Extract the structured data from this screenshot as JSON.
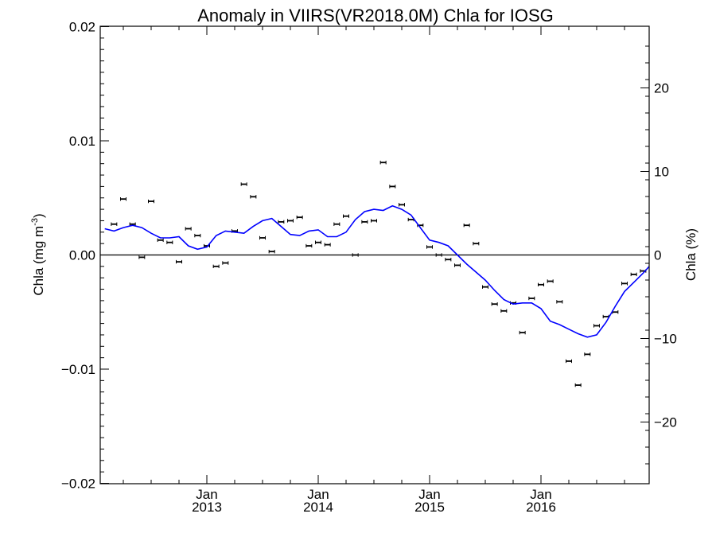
{
  "chart_data": {
    "type": "scatter",
    "title": "Anomaly in VIIRS(VR2018.0M) Chla for IOSG",
    "ylabel": "Chla (mg m",
    "ylabel_superscript": "-3",
    "ylabel_close": ")",
    "y2label": "Chla (%)",
    "x_axis": {
      "type": "date",
      "range": [
        "2012-03",
        "2016-12"
      ],
      "ticks": [
        {
          "month": "Jan",
          "year": "2013",
          "date": "2013-01"
        },
        {
          "month": "Jan",
          "year": "2014",
          "date": "2014-01"
        },
        {
          "month": "Jan",
          "year": "2015",
          "date": "2015-01"
        },
        {
          "month": "Jan",
          "year": "2016",
          "date": "2016-01"
        }
      ]
    },
    "ylim": [
      -0.02,
      0.0202
    ],
    "yticks": [
      "0.02",
      "0.01",
      "0.00",
      "-0.01",
      "-0.02"
    ],
    "y2lim": [
      -27.5,
      27.8
    ],
    "y2ticks": [
      "20",
      "10",
      "0",
      "-10",
      "-20"
    ],
    "zero_line": true,
    "series": [
      {
        "kind": "points_with_error_bars",
        "color": "#000000",
        "points": [
          {
            "x": "2012-03",
            "y": 0.0027
          },
          {
            "x": "2012-04",
            "y": 0.0049
          },
          {
            "x": "2012-05",
            "y": 0.0027
          },
          {
            "x": "2012-06",
            "y": -0.0002
          },
          {
            "x": "2012-07",
            "y": 0.0047
          },
          {
            "x": "2012-08",
            "y": 0.0013
          },
          {
            "x": "2012-09",
            "y": 0.0011
          },
          {
            "x": "2012-10",
            "y": -0.0006
          },
          {
            "x": "2012-11",
            "y": 0.0023
          },
          {
            "x": "2012-12",
            "y": 0.0017
          },
          {
            "x": "2013-01",
            "y": 0.0008
          },
          {
            "x": "2013-02",
            "y": -0.001
          },
          {
            "x": "2013-03",
            "y": -0.0007
          },
          {
            "x": "2013-04",
            "y": 0.0021
          },
          {
            "x": "2013-05",
            "y": 0.0062
          },
          {
            "x": "2013-06",
            "y": 0.0051
          },
          {
            "x": "2013-07",
            "y": 0.0015
          },
          {
            "x": "2013-08",
            "y": 0.0003
          },
          {
            "x": "2013-09",
            "y": 0.0029
          },
          {
            "x": "2013-10",
            "y": 0.003
          },
          {
            "x": "2013-11",
            "y": 0.0033
          },
          {
            "x": "2013-12",
            "y": 0.0008
          },
          {
            "x": "2014-01",
            "y": 0.0011
          },
          {
            "x": "2014-02",
            "y": 0.0009
          },
          {
            "x": "2014-03",
            "y": 0.0027
          },
          {
            "x": "2014-04",
            "y": 0.0034
          },
          {
            "x": "2014-05",
            "y": 0.0
          },
          {
            "x": "2014-06",
            "y": 0.0029
          },
          {
            "x": "2014-07",
            "y": 0.003
          },
          {
            "x": "2014-08",
            "y": 0.0081
          },
          {
            "x": "2014-09",
            "y": 0.006
          },
          {
            "x": "2014-10",
            "y": 0.0044
          },
          {
            "x": "2014-11",
            "y": 0.0031
          },
          {
            "x": "2014-12",
            "y": 0.0026
          },
          {
            "x": "2015-01",
            "y": 0.0007
          },
          {
            "x": "2015-02",
            "y": 0.0
          },
          {
            "x": "2015-03",
            "y": -0.0004
          },
          {
            "x": "2015-04",
            "y": -0.0009
          },
          {
            "x": "2015-05",
            "y": 0.0026
          },
          {
            "x": "2015-06",
            "y": 0.001
          },
          {
            "x": "2015-07",
            "y": -0.0028
          },
          {
            "x": "2015-08",
            "y": -0.0043
          },
          {
            "x": "2015-09",
            "y": -0.0049
          },
          {
            "x": "2015-10",
            "y": -0.0042
          },
          {
            "x": "2015-11",
            "y": -0.0068
          },
          {
            "x": "2015-12",
            "y": -0.0038
          },
          {
            "x": "2016-01",
            "y": -0.0026
          },
          {
            "x": "2016-02",
            "y": -0.0023
          },
          {
            "x": "2016-03",
            "y": -0.0041
          },
          {
            "x": "2016-04",
            "y": -0.0093
          },
          {
            "x": "2016-05",
            "y": -0.0114
          },
          {
            "x": "2016-06",
            "y": -0.0087
          },
          {
            "x": "2016-07",
            "y": -0.0062
          },
          {
            "x": "2016-08",
            "y": -0.0054
          },
          {
            "x": "2016-09",
            "y": -0.005
          },
          {
            "x": "2016-10",
            "y": -0.0025
          },
          {
            "x": "2016-11",
            "y": -0.0017
          },
          {
            "x": "2016-12",
            "y": -0.0014
          }
        ]
      },
      {
        "kind": "line",
        "color": "#0000ff",
        "points": [
          {
            "x": "2012-02",
            "y": 0.0023
          },
          {
            "x": "2012-03",
            "y": 0.0021
          },
          {
            "x": "2012-04",
            "y": 0.0024
          },
          {
            "x": "2012-05",
            "y": 0.0026
          },
          {
            "x": "2012-06",
            "y": 0.0024
          },
          {
            "x": "2012-07",
            "y": 0.0019
          },
          {
            "x": "2012-08",
            "y": 0.0015
          },
          {
            "x": "2012-09",
            "y": 0.0015
          },
          {
            "x": "2012-10",
            "y": 0.0016
          },
          {
            "x": "2012-11",
            "y": 0.0008
          },
          {
            "x": "2012-12",
            "y": 0.0005
          },
          {
            "x": "2013-01",
            "y": 0.0007
          },
          {
            "x": "2013-02",
            "y": 0.0017
          },
          {
            "x": "2013-03",
            "y": 0.0021
          },
          {
            "x": "2013-04",
            "y": 0.002
          },
          {
            "x": "2013-05",
            "y": 0.0019
          },
          {
            "x": "2013-06",
            "y": 0.0025
          },
          {
            "x": "2013-07",
            "y": 0.003
          },
          {
            "x": "2013-08",
            "y": 0.0032
          },
          {
            "x": "2013-09",
            "y": 0.0025
          },
          {
            "x": "2013-10",
            "y": 0.0018
          },
          {
            "x": "2013-11",
            "y": 0.0017
          },
          {
            "x": "2013-12",
            "y": 0.0021
          },
          {
            "x": "2014-01",
            "y": 0.0022
          },
          {
            "x": "2014-02",
            "y": 0.0016
          },
          {
            "x": "2014-03",
            "y": 0.0016
          },
          {
            "x": "2014-04",
            "y": 0.002
          },
          {
            "x": "2014-05",
            "y": 0.0031
          },
          {
            "x": "2014-06",
            "y": 0.0038
          },
          {
            "x": "2014-07",
            "y": 0.004
          },
          {
            "x": "2014-08",
            "y": 0.0039
          },
          {
            "x": "2014-09",
            "y": 0.0043
          },
          {
            "x": "2014-10",
            "y": 0.004
          },
          {
            "x": "2014-11",
            "y": 0.0035
          },
          {
            "x": "2014-12",
            "y": 0.0024
          },
          {
            "x": "2015-01",
            "y": 0.0013
          },
          {
            "x": "2015-02",
            "y": 0.0011
          },
          {
            "x": "2015-03",
            "y": 0.0008
          },
          {
            "x": "2015-04",
            "y": 0.0
          },
          {
            "x": "2015-05",
            "y": -0.0008
          },
          {
            "x": "2015-06",
            "y": -0.0015
          },
          {
            "x": "2015-07",
            "y": -0.0022
          },
          {
            "x": "2015-08",
            "y": -0.0031
          },
          {
            "x": "2015-09",
            "y": -0.0039
          },
          {
            "x": "2015-10",
            "y": -0.0043
          },
          {
            "x": "2015-11",
            "y": -0.0042
          },
          {
            "x": "2015-12",
            "y": -0.0042
          },
          {
            "x": "2016-01",
            "y": -0.0047
          },
          {
            "x": "2016-02",
            "y": -0.0058
          },
          {
            "x": "2016-03",
            "y": -0.0061
          },
          {
            "x": "2016-04",
            "y": -0.0065
          },
          {
            "x": "2016-05",
            "y": -0.0069
          },
          {
            "x": "2016-06",
            "y": -0.0072
          },
          {
            "x": "2016-07",
            "y": -0.007
          },
          {
            "x": "2016-08",
            "y": -0.0059
          },
          {
            "x": "2016-09",
            "y": -0.0045
          },
          {
            "x": "2016-10",
            "y": -0.0032
          },
          {
            "x": "2016-11",
            "y": -0.0024
          },
          {
            "x": "2016-12",
            "y": -0.0016
          },
          {
            "x": "2017-01",
            "y": -0.0007
          }
        ]
      }
    ]
  }
}
